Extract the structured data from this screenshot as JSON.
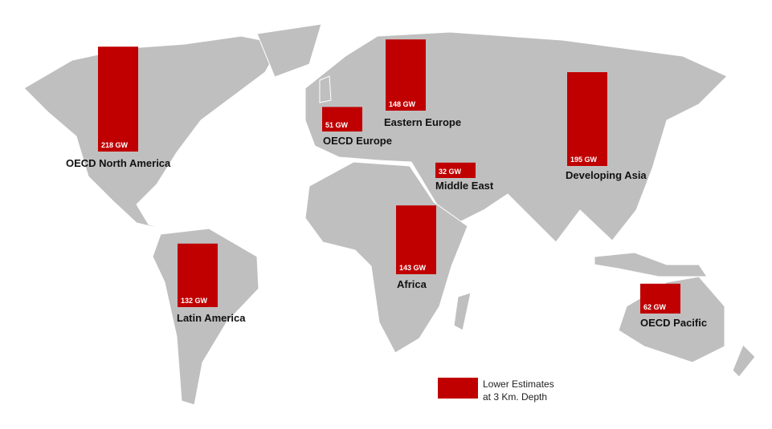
{
  "chart_data": {
    "type": "bar",
    "categories": [
      "OECD North America",
      "Latin America",
      "OECD Europe",
      "Eastern Europe",
      "Middle East",
      "Africa",
      "Developing Asia",
      "OECD Pacific"
    ],
    "values": [
      218,
      132,
      51,
      148,
      32,
      143,
      195,
      62
    ],
    "value_labels": [
      "218 GW",
      "132 GW",
      "51 GW",
      "148 GW",
      "32 GW",
      "143 GW",
      "195 GW",
      "62 GW"
    ],
    "color": "#c00000",
    "legend": [
      "Lower Estimates",
      "at 3 Km. Depth"
    ]
  }
}
